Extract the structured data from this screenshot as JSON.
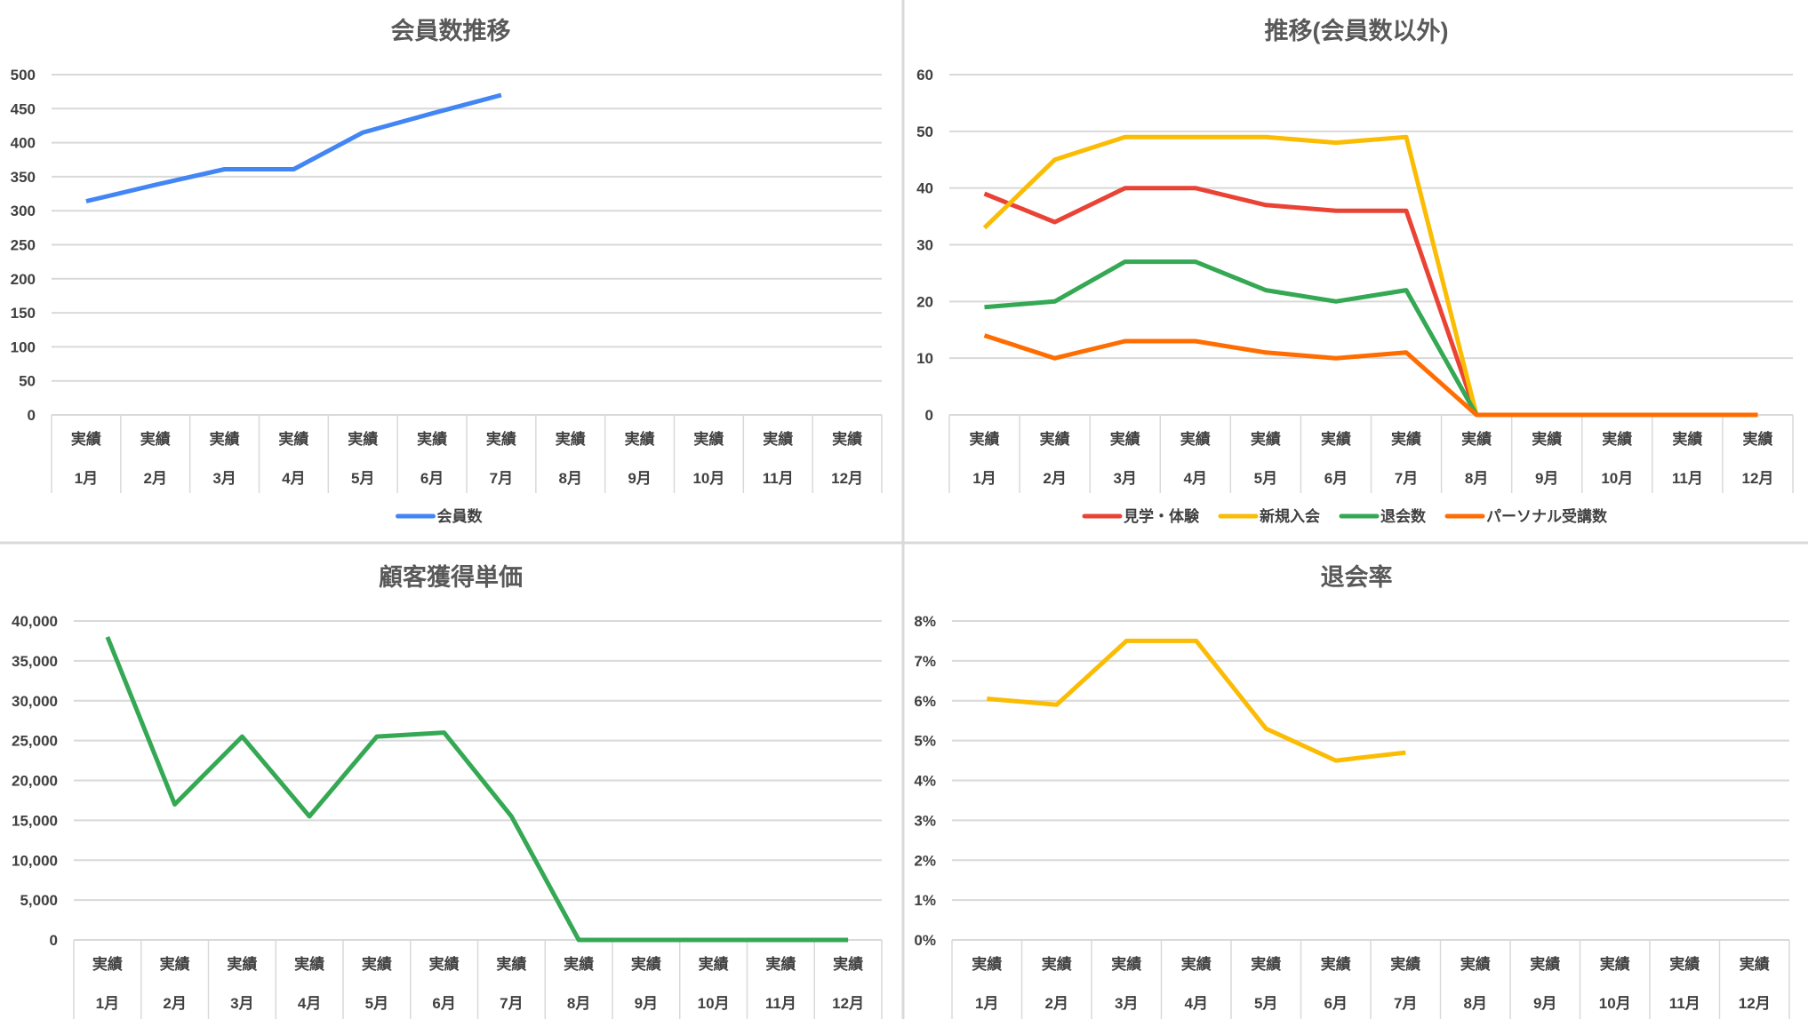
{
  "chart_data": [
    {
      "type": "line",
      "title": "会員数推移",
      "categories": [
        [
          "実績",
          "1月"
        ],
        [
          "実績",
          "2月"
        ],
        [
          "実績",
          "3月"
        ],
        [
          "実績",
          "4月"
        ],
        [
          "実績",
          "5月"
        ],
        [
          "実績",
          "6月"
        ],
        [
          "実績",
          "7月"
        ],
        [
          "実績",
          "8月"
        ],
        [
          "実績",
          "9月"
        ],
        [
          "実績",
          "10月"
        ],
        [
          "実績",
          "11月"
        ],
        [
          "実績",
          "12月"
        ]
      ],
      "ylim": [
        0,
        500
      ],
      "ystep": 50,
      "yformat": "int",
      "yticks": [
        "0",
        "50",
        "100",
        "150",
        "200",
        "250",
        "300",
        "350",
        "400",
        "450",
        "500"
      ],
      "legend": "bottom",
      "series": [
        {
          "name": "会員数",
          "color": "#4285F4",
          "values": [
            314,
            338,
            361,
            361,
            415,
            443,
            470,
            null,
            null,
            null,
            null,
            null
          ]
        }
      ]
    },
    {
      "type": "line",
      "title": "推移(会員数以外)",
      "categories": [
        [
          "実績",
          "1月"
        ],
        [
          "実績",
          "2月"
        ],
        [
          "実績",
          "3月"
        ],
        [
          "実績",
          "4月"
        ],
        [
          "実績",
          "5月"
        ],
        [
          "実績",
          "6月"
        ],
        [
          "実績",
          "7月"
        ],
        [
          "実績",
          "8月"
        ],
        [
          "実績",
          "9月"
        ],
        [
          "実績",
          "10月"
        ],
        [
          "実績",
          "11月"
        ],
        [
          "実績",
          "12月"
        ]
      ],
      "ylim": [
        0,
        60
      ],
      "ystep": 10,
      "yticks": [
        "0",
        "10",
        "20",
        "30",
        "40",
        "50",
        "60"
      ],
      "legend": "bottom",
      "series": [
        {
          "name": "見学・体験",
          "color": "#EA4335",
          "values": [
            39,
            34,
            40,
            40,
            37,
            36,
            36,
            0,
            null,
            null,
            null,
            null
          ]
        },
        {
          "name": "新規入会",
          "color": "#FBBC04",
          "values": [
            33,
            45,
            49,
            49,
            49,
            48,
            49,
            0,
            null,
            null,
            null,
            null
          ]
        },
        {
          "name": "退会数",
          "color": "#34A853",
          "values": [
            19,
            20,
            27,
            27,
            22,
            20,
            22,
            0,
            null,
            null,
            null,
            null
          ]
        },
        {
          "name": "パーソナル受講数",
          "color": "#FF6D01",
          "values": [
            14,
            10,
            13,
            13,
            11,
            10,
            11,
            0,
            0,
            0,
            0,
            0
          ]
        }
      ]
    },
    {
      "type": "line",
      "title": "顧客獲得単価",
      "categories": [
        [
          "実績",
          "1月"
        ],
        [
          "実績",
          "2月"
        ],
        [
          "実績",
          "3月"
        ],
        [
          "実績",
          "4月"
        ],
        [
          "実績",
          "5月"
        ],
        [
          "実績",
          "6月"
        ],
        [
          "実績",
          "7月"
        ],
        [
          "実績",
          "8月"
        ],
        [
          "実績",
          "9月"
        ],
        [
          "実績",
          "10月"
        ],
        [
          "実績",
          "11月"
        ],
        [
          "実績",
          "12月"
        ]
      ],
      "ylim": [
        0,
        40000
      ],
      "ystep": 5000,
      "yticks": [
        "0",
        "5,000",
        "10,000",
        "15,000",
        "20,000",
        "25,000",
        "30,000",
        "35,000",
        "40,000"
      ],
      "series": [
        {
          "name": "顧客獲得単価",
          "color": "#34A853",
          "values": [
            38000,
            17000,
            25500,
            15500,
            25500,
            26000,
            15500,
            0,
            0,
            0,
            0,
            0
          ]
        }
      ]
    },
    {
      "type": "line",
      "title": "退会率",
      "categories": [
        [
          "実績",
          "1月"
        ],
        [
          "実績",
          "2月"
        ],
        [
          "実績",
          "3月"
        ],
        [
          "実績",
          "4月"
        ],
        [
          "実績",
          "5月"
        ],
        [
          "実績",
          "6月"
        ],
        [
          "実績",
          "7月"
        ],
        [
          "実績",
          "8月"
        ],
        [
          "実績",
          "9月"
        ],
        [
          "実績",
          "10月"
        ],
        [
          "実績",
          "11月"
        ],
        [
          "実績",
          "12月"
        ]
      ],
      "ylim": [
        0,
        0.08
      ],
      "ystep": 0.01,
      "yticks": [
        "0%",
        "1%",
        "2%",
        "3%",
        "4%",
        "5%",
        "6%",
        "7%",
        "8%"
      ],
      "series": [
        {
          "name": "退会率",
          "color": "#FBBC04",
          "values": [
            0.0605,
            0.059,
            0.075,
            0.075,
            0.053,
            0.045,
            0.047,
            null,
            null,
            null,
            null,
            null
          ]
        }
      ]
    }
  ]
}
